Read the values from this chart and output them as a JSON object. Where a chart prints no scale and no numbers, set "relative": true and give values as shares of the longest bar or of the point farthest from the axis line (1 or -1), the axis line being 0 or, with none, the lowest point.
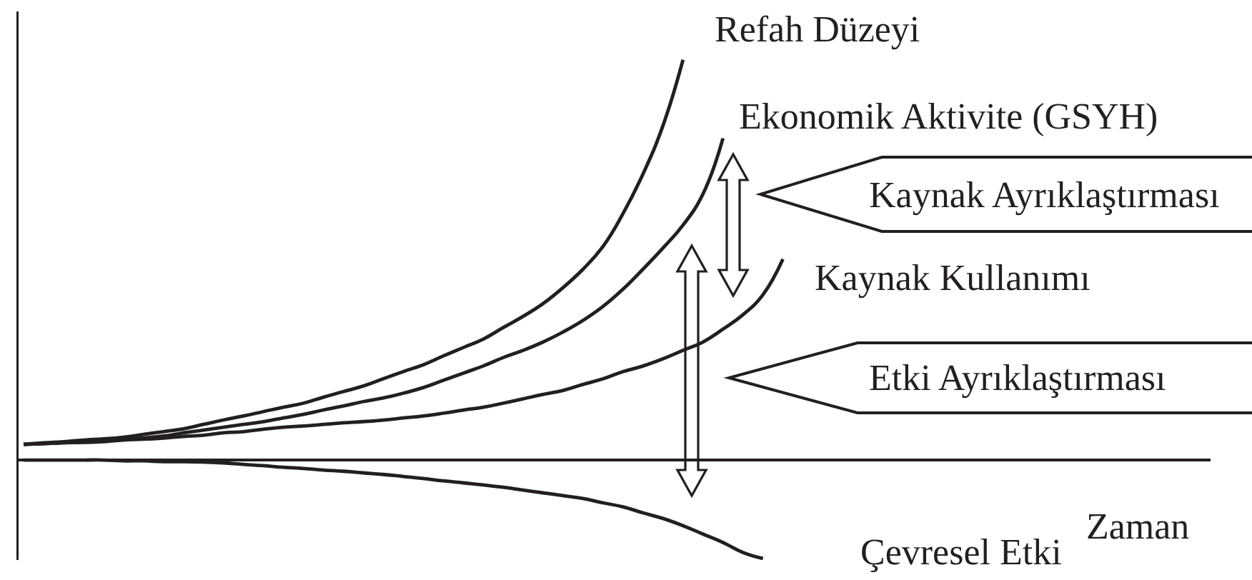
{
  "chart_data": {
    "type": "line",
    "relative": true,
    "xlabel": "Zaman",
    "categories": [
      null,
      null,
      null,
      null,
      null,
      null,
      null,
      null,
      null,
      null,
      null,
      null,
      null,
      null,
      null,
      null,
      null,
      null,
      null,
      null,
      null,
      null,
      null,
      null,
      null,
      null,
      null,
      null,
      null,
      null,
      null,
      null,
      null,
      null,
      null,
      null,
      null,
      null,
      null,
      null,
      null,
      null,
      null,
      null,
      null,
      null,
      null,
      null,
      null,
      null,
      null,
      null,
      null,
      null,
      null,
      null,
      null,
      null,
      null,
      null
    ],
    "series": [
      {
        "name": "Refah Düzeyi",
        "color": "#231f20",
        "values": [
          0.039,
          0.043,
          0.046,
          0.05,
          0.053,
          0.057,
          0.064,
          0.071,
          0.078,
          0.089,
          0.1,
          0.11,
          0.121,
          0.132,
          0.142,
          0.157,
          0.171,
          0.185,
          0.203,
          0.221,
          0.238,
          0.26,
          0.281,
          0.302,
          0.331,
          0.359,
          0.391,
          0.431,
          0.477,
          0.534,
          0.616,
          0.715,
          0.836,
          1,
          null,
          null,
          null,
          null,
          null,
          null,
          null,
          null,
          null,
          null,
          null,
          null,
          null,
          null,
          null,
          null,
          null,
          null,
          null,
          null,
          null,
          null,
          null,
          null,
          null,
          null
        ]
      },
      {
        "name": "Ekonomik Aktivite (GSYH)",
        "color": "#231f20",
        "values": [
          0.039,
          0.041,
          0.043,
          0.046,
          0.048,
          0.052,
          0.055,
          0.06,
          0.068,
          0.075,
          0.082,
          0.089,
          0.096,
          0.105,
          0.114,
          0.125,
          0.135,
          0.146,
          0.155,
          0.167,
          0.181,
          0.199,
          0.217,
          0.235,
          0.256,
          0.274,
          0.295,
          0.32,
          0.349,
          0.384,
          0.427,
          0.477,
          0.53,
          0.587,
          0.665,
          0.804,
          null,
          null,
          null,
          null,
          null,
          null,
          null,
          null,
          null,
          null,
          null,
          null,
          null,
          null,
          null,
          null,
          null,
          null,
          null,
          null,
          null,
          null,
          null,
          null
        ]
      },
      {
        "name": "Kaynak Kullanımı",
        "color": "#231f20",
        "values": [
          0.039,
          0.041,
          0.043,
          0.044,
          0.046,
          0.05,
          0.052,
          0.055,
          0.059,
          0.062,
          0.068,
          0.071,
          0.077,
          0.082,
          0.085,
          0.089,
          0.093,
          0.096,
          0.1,
          0.105,
          0.11,
          0.117,
          0.125,
          0.132,
          0.142,
          0.153,
          0.164,
          0.174,
          0.189,
          0.203,
          0.221,
          0.235,
          0.253,
          0.274,
          0.295,
          0.327,
          0.363,
          0.413,
          0.502,
          null,
          null,
          null,
          null,
          null,
          null,
          null,
          null,
          null,
          null,
          null,
          null,
          null,
          null,
          null,
          null,
          null,
          null,
          null,
          null,
          null
        ]
      },
      {
        "name": "Çevresel Etki",
        "color": "#231f20",
        "values": [
          0,
          0,
          0,
          0,
          0,
          -0.002,
          -0.002,
          -0.004,
          -0.004,
          -0.005,
          -0.007,
          -0.011,
          -0.014,
          -0.018,
          -0.021,
          -0.025,
          -0.028,
          -0.032,
          -0.036,
          -0.041,
          -0.046,
          -0.052,
          -0.057,
          -0.062,
          -0.068,
          -0.075,
          -0.082,
          -0.089,
          -0.096,
          -0.107,
          -0.117,
          -0.132,
          -0.146,
          -0.164,
          -0.185,
          -0.206,
          -0.231,
          -0.246,
          null,
          null,
          null,
          null,
          null,
          null,
          null,
          null,
          null,
          null,
          null,
          null,
          null,
          null,
          null,
          null,
          null,
          null,
          null,
          null,
          null,
          null
        ]
      }
    ],
    "annotations": [
      "Kaynak Ayrıklaştırması",
      "Etki Ayrıklaştırması"
    ]
  }
}
